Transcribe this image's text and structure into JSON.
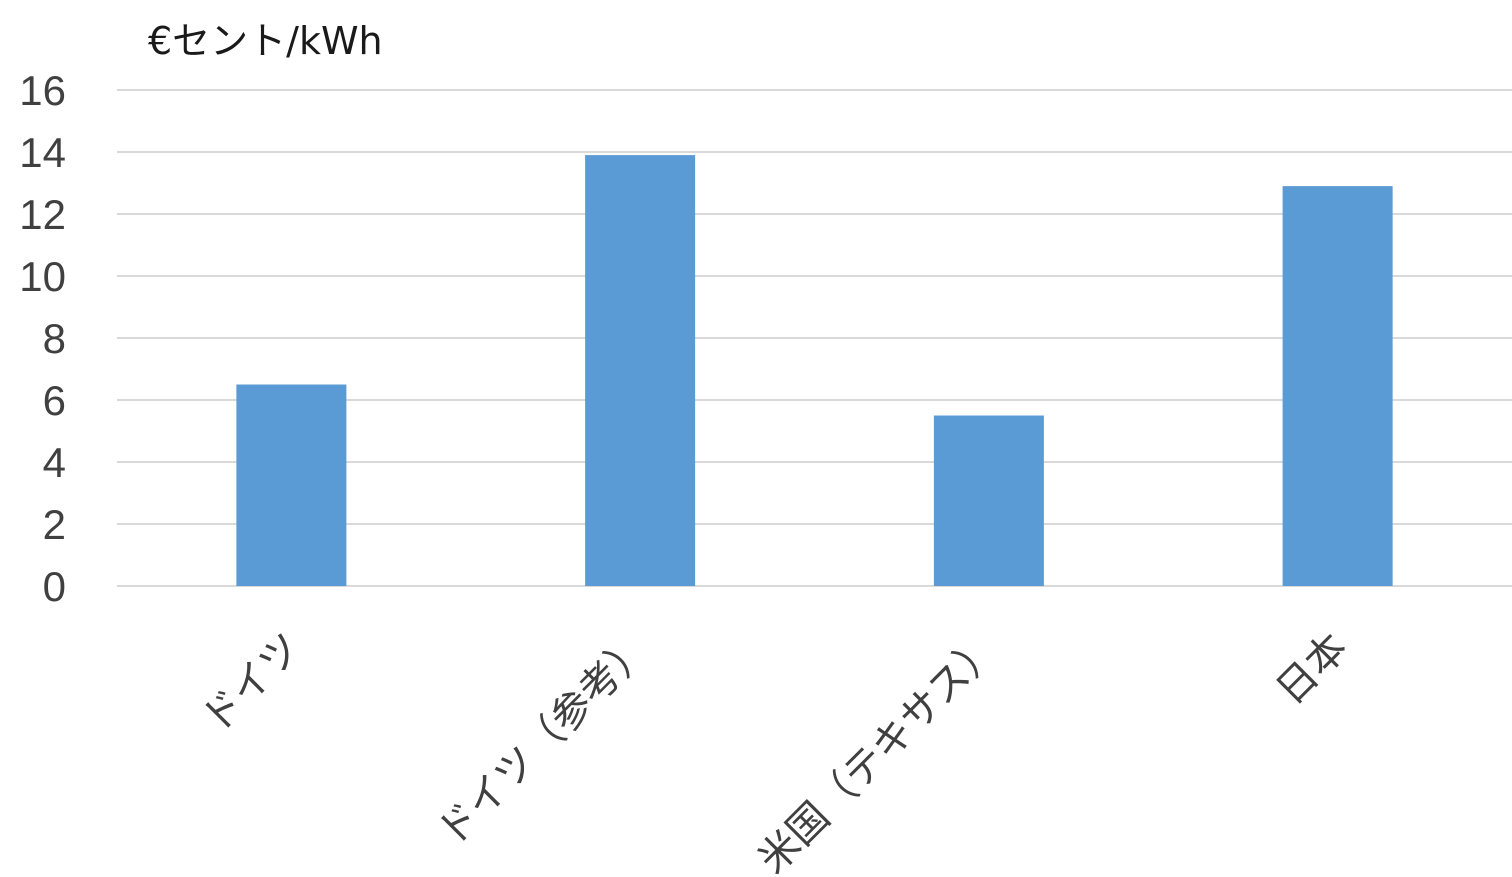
{
  "chart_data": {
    "type": "bar",
    "ylabel": "€セント/kWh",
    "categories": [
      "ドイツ",
      "ドイツ（参考）",
      "米国（テキサス）",
      "日本"
    ],
    "series": [
      {
        "values": [
          6.5,
          13.9,
          5.5,
          12.9
        ]
      }
    ],
    "ylim": [
      0,
      16
    ],
    "yticks": [
      0,
      2,
      4,
      6,
      8,
      10,
      12,
      14,
      16
    ],
    "grid": true,
    "bar_color": "#5b9bd5",
    "grid_color": "#d9d9d9"
  }
}
